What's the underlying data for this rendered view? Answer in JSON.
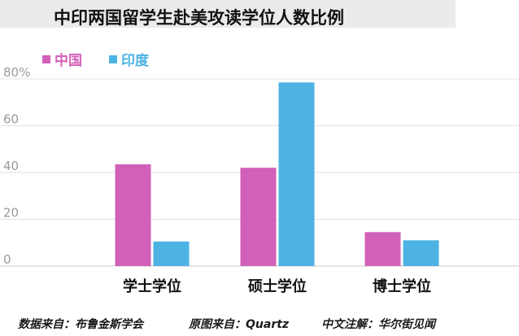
{
  "chart_data": {
    "type": "bar",
    "title": "中印两国留学生赴美攻读学位人数比例",
    "categories": [
      "学士学位",
      "硕士学位",
      "博士学位"
    ],
    "series": [
      {
        "name": "中国",
        "values": [
          43.5,
          42,
          14.5
        ],
        "color": "#d160b8"
      },
      {
        "name": "印度",
        "values": [
          10.5,
          78.5,
          11
        ],
        "color": "#4db3e3"
      }
    ],
    "ylim": [
      0,
      80
    ],
    "yticks": [
      "0",
      "20",
      "40",
      "60",
      "80%"
    ],
    "grid": true,
    "legend_position": "top-left"
  },
  "footer": {
    "data_source": "数据来自：布鲁金斯学会",
    "image_source": "原图来自：Quartz",
    "annotation": "中文注解：华尔街见闻"
  }
}
